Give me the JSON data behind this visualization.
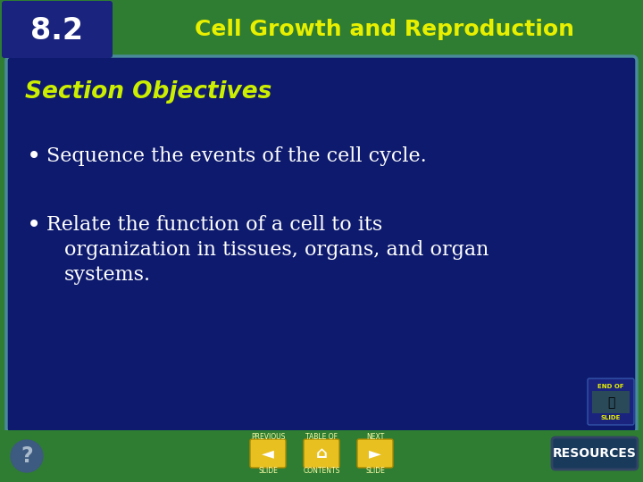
{
  "bg_outer": "#2e7d32",
  "bg_number_box": "#1a237e",
  "bg_main": "#0d1a6e",
  "bg_main_border": "#4a8a9a",
  "header_text": "Cell Growth and Reproduction",
  "header_color": "#e8f000",
  "number_text": "8.2",
  "number_color": "#ffffff",
  "section_title": "Section Objectives",
  "section_title_color": "#ccee00",
  "bullet1": "Sequence the events of the cell cycle.",
  "bullet2_line1": "Relate the function of a cell to its",
  "bullet2_line2": "organization in tissues, organs, and organ",
  "bullet2_line3": "systems.",
  "bullet_color": "#ffffff",
  "footer_bg": "#2e7d32",
  "resources_text": "RESOURCES",
  "resources_bg": "#1a3a5c",
  "resources_color": "#ffffff",
  "nav_color": "#e8c020",
  "question_color": "#aabbcc",
  "end_of_slide_color": "#e8f000",
  "end_bg": "#1a237e"
}
